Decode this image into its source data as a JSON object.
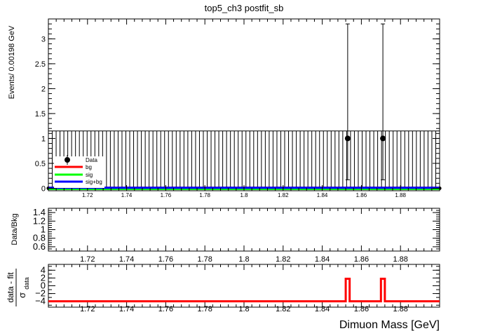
{
  "title": "top5_ch3   postfit_sb",
  "chart_data": [
    {
      "type": "scatter",
      "panel": "main",
      "title": "top5_ch3   postfit_sb",
      "xlabel": "",
      "ylabel": "Events/ 0.00198 GeV",
      "xlim": [
        1.7,
        1.9
      ],
      "ylim": [
        -0.05,
        3.4
      ],
      "x_ticks": [
        1.72,
        1.74,
        1.76,
        1.78,
        1.8,
        1.82,
        1.84,
        1.86,
        1.88
      ],
      "y_ticks": [
        0,
        0.5,
        1,
        1.5,
        2,
        2.5,
        3
      ],
      "x_tick_labels": [
        "1.72",
        "1.74",
        "1.76",
        "1.78",
        "1.8",
        "1.82",
        "1.84",
        "1.86",
        "1.88"
      ],
      "y_tick_labels": [
        "0",
        "0.5",
        "1",
        "1.5",
        "2",
        "2.5",
        "3"
      ],
      "bin_width": 0.00198,
      "empty_bin_error_high": 1.15,
      "nonzero_points": [
        {
          "x": 1.853,
          "y": 1,
          "err_low": 0.83,
          "err_high": 2.3
        },
        {
          "x": 1.871,
          "y": 1,
          "err_low": 0.83,
          "err_high": 2.3
        }
      ],
      "legend_position": "left, inside plot",
      "series": [
        {
          "name": "Data",
          "color": "#000000",
          "style": "markers"
        },
        {
          "name": "bg",
          "color": "#ff0000",
          "style": "line"
        },
        {
          "name": "sig",
          "color": "#00ff00",
          "style": "line"
        },
        {
          "name": "sig+bg",
          "color": "#0000ff",
          "style": "line"
        }
      ],
      "bg_curve_y": 0.01,
      "sig_curve_y": 0,
      "sigbg_curve_y": 0.01
    },
    {
      "type": "line",
      "panel": "ratio",
      "ylabel": "Data/Bkg",
      "xlim": [
        1.7,
        1.9
      ],
      "ylim": [
        0.5,
        1.5
      ],
      "y_ticks": [
        0.6,
        0.8,
        1,
        1.2,
        1.4
      ],
      "y_tick_labels": [
        "0.6",
        "0.8",
        "1",
        "1.2",
        "1.4"
      ],
      "x_tick_labels": [
        "1.72",
        "1.74",
        "1.76",
        "1.78",
        "1.8",
        "1.82",
        "1.84",
        "1.86",
        "1.88"
      ],
      "values": []
    },
    {
      "type": "line",
      "panel": "pull",
      "ylabel_numerator": "data - fit",
      "ylabel_denominator": "σ",
      "ylabel_subscript": "data",
      "xlabel": "Dimuon Mass [GeV]",
      "xlim": [
        1.7,
        1.9
      ],
      "ylim": [
        -5.5,
        5.5
      ],
      "y_ticks": [
        -4,
        -2,
        0,
        2,
        4
      ],
      "y_tick_labels": [
        "−4",
        "−2",
        "0",
        "2",
        "4"
      ],
      "x_tick_labels": [
        "1.72",
        "1.74",
        "1.76",
        "1.78",
        "1.8",
        "1.82",
        "1.84",
        "1.86",
        "1.88"
      ],
      "color": "#ff0000",
      "baseline": -4,
      "spikes": [
        {
          "x_start": 1.852,
          "x_end": 1.854,
          "y": 1.8
        },
        {
          "x_start": 1.87,
          "x_end": 1.872,
          "y": 1.8
        }
      ]
    }
  ]
}
